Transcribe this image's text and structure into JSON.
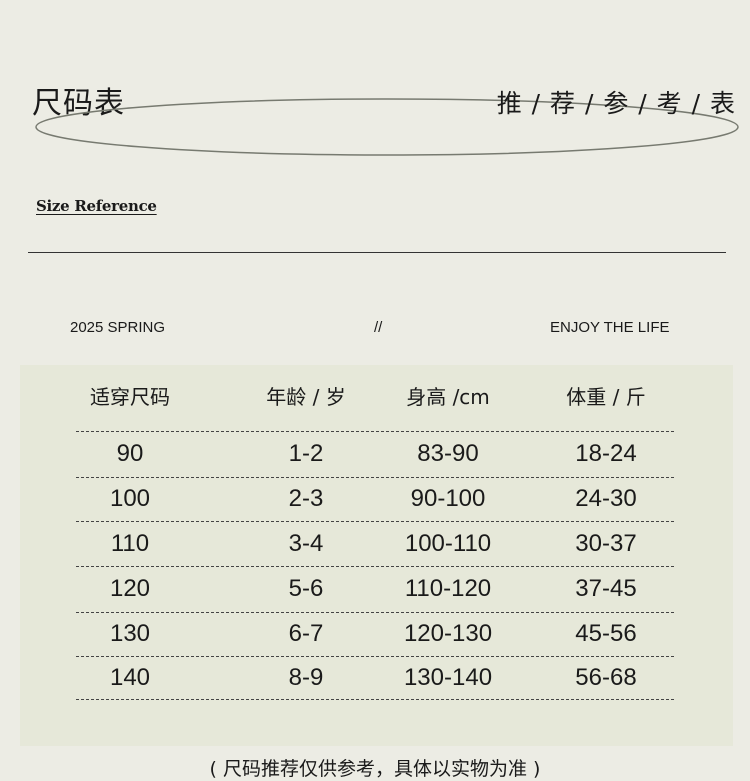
{
  "header": {
    "title": "尺码表",
    "right_title": "推 / 荐 / 参 / 考 / 表",
    "subtitle": "Size Reference"
  },
  "tagline": {
    "left": "2025 SPRING",
    "center": "//",
    "right": "ENJOY THE LIFE"
  },
  "table": {
    "columns": [
      "适穿尺码",
      "年龄 / 岁",
      "身高 /cm",
      "体重 / 斤"
    ],
    "rows": [
      [
        "90",
        "1-2",
        "83-90",
        "18-24"
      ],
      [
        "100",
        "2-3",
        "90-100",
        "24-30"
      ],
      [
        "110",
        "3-4",
        "100-110",
        "30-37"
      ],
      [
        "120",
        "5-6",
        "110-120",
        "37-45"
      ],
      [
        "130",
        "6-7",
        "120-130",
        "45-56"
      ],
      [
        "140",
        "8-9",
        "130-140",
        "56-68"
      ]
    ]
  },
  "note": "( 尺码推荐仅供参考，具体以实物为准 )",
  "colors": {
    "background": "#ecece4",
    "panel": "#e6e8d9",
    "text": "#1a1a1a"
  }
}
